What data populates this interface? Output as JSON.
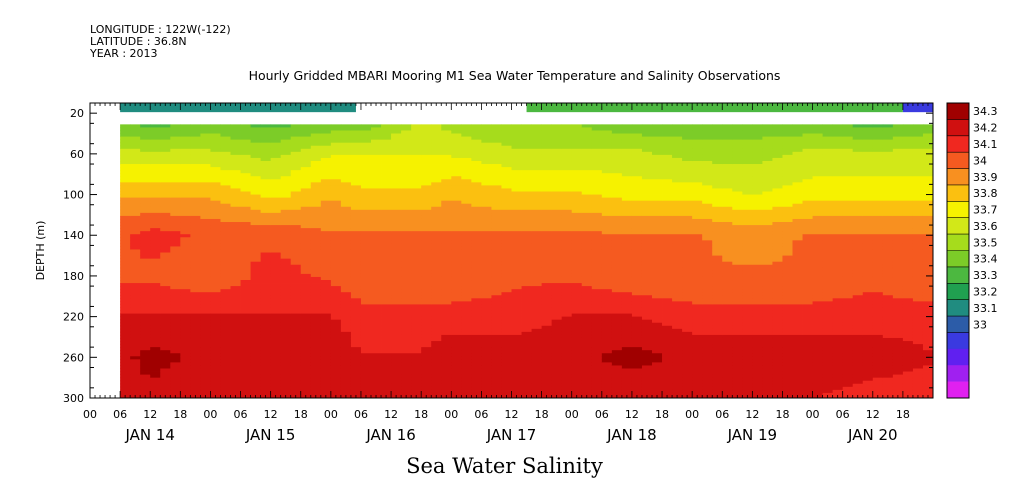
{
  "meta": {
    "longitude": "LONGITUDE : 122W(-122)",
    "latitude": "LATITUDE : 36.8N",
    "year": "YEAR : 2013"
  },
  "chart_data": {
    "type": "heatmap",
    "title": "Hourly Gridded MBARI Mooring M1 Sea Water Temperature and Salinity Observations",
    "footer": "Sea Water Salinity",
    "ylabel": "DEPTH (m)",
    "ylim": [
      300,
      10
    ],
    "y_ticks": [
      20,
      60,
      100,
      140,
      180,
      220,
      260,
      300
    ],
    "x_hour_ticks": [
      "00",
      "06",
      "12",
      "18",
      "00",
      "06",
      "12",
      "18",
      "00",
      "06",
      "12",
      "18",
      "00",
      "06",
      "12",
      "18",
      "00",
      "06",
      "12",
      "18",
      "00",
      "06",
      "12",
      "18",
      "00",
      "06",
      "12",
      "18"
    ],
    "x_day_labels": [
      "JAN 14",
      "JAN 15",
      "JAN 16",
      "JAN 17",
      "JAN 18",
      "JAN 19",
      "JAN 20"
    ],
    "x_range_hours": [
      0,
      168
    ],
    "colorbar": {
      "levels": [
        "34.3",
        "34.2",
        "34.1",
        "34",
        "33.9",
        "33.8",
        "33.7",
        "33.6",
        "33.5",
        "33.4",
        "33.3",
        "33.2",
        "33.1",
        "33"
      ],
      "colors": [
        "#a00000",
        "#d01010",
        "#f02820",
        "#f55a20",
        "#f89020",
        "#fbc010",
        "#f6f200",
        "#d2e818",
        "#a6dc1c",
        "#7ccc28",
        "#4cb840",
        "#20a050",
        "#208c80",
        "#2c5ca8",
        "#3a3ae0",
        "#6020f0",
        "#a020f0",
        "#e020f0"
      ]
    },
    "surface_band": [
      {
        "start_hour": 6,
        "end_hour": 53,
        "depth_top": 10,
        "depth_bottom": 19,
        "value": 33.35
      },
      {
        "start_hour": 87,
        "end_hour": 162,
        "depth_top": 10,
        "depth_bottom": 19,
        "value": 33.5
      },
      {
        "start_hour": 162,
        "end_hour": 168,
        "depth_top": 10,
        "depth_bottom": 19,
        "value": 33.2
      }
    ],
    "data_start_hour": 6,
    "data_top_depth": 31,
    "depth_profiles": [
      {
        "hour": 6,
        "depths": [
          31,
          60,
          100,
          140,
          180,
          220,
          260,
          300
        ],
        "values": [
          33.6,
          33.75,
          33.95,
          34.1,
          34.1,
          34.2,
          34.25,
          34.2
        ]
      },
      {
        "hour": 12,
        "depths": [
          31,
          60,
          100,
          140,
          180,
          220,
          260,
          300
        ],
        "values": [
          33.55,
          33.75,
          33.95,
          34.15,
          34.1,
          34.2,
          34.3,
          34.25
        ]
      },
      {
        "hour": 24,
        "depths": [
          31,
          60,
          100,
          140,
          180,
          220,
          260,
          300
        ],
        "values": [
          33.6,
          33.75,
          33.95,
          34.1,
          34.05,
          34.2,
          34.25,
          34.2
        ]
      },
      {
        "hour": 36,
        "depths": [
          31,
          60,
          100,
          140,
          180,
          220,
          260,
          300
        ],
        "values": [
          33.55,
          33.7,
          33.85,
          34.1,
          34.15,
          34.2,
          34.25,
          34.2
        ]
      },
      {
        "hour": 48,
        "depths": [
          31,
          60,
          100,
          140,
          180,
          220,
          260,
          300
        ],
        "values": [
          33.6,
          33.8,
          33.95,
          34.05,
          34.1,
          34.2,
          34.25,
          34.2
        ]
      },
      {
        "hour": 54,
        "depths": [
          31,
          60,
          100,
          140,
          180,
          220,
          260,
          300
        ],
        "values": [
          33.6,
          33.8,
          33.9,
          34.05,
          34.05,
          34.15,
          34.2,
          34.2
        ]
      },
      {
        "hour": 66,
        "depths": [
          31,
          60,
          100,
          140,
          180,
          220,
          260,
          300
        ],
        "values": [
          33.75,
          33.8,
          33.9,
          34.05,
          34.05,
          34.15,
          34.2,
          34.2
        ]
      },
      {
        "hour": 72,
        "depths": [
          31,
          60,
          100,
          140,
          180,
          220,
          260,
          300
        ],
        "values": [
          33.7,
          33.8,
          33.95,
          34.05,
          34.05,
          34.15,
          34.25,
          34.2
        ]
      },
      {
        "hour": 84,
        "depths": [
          31,
          60,
          100,
          140,
          180,
          220,
          260,
          300
        ],
        "values": [
          33.65,
          33.75,
          33.9,
          34.05,
          34.1,
          34.15,
          34.25,
          34.2
        ]
      },
      {
        "hour": 96,
        "depths": [
          31,
          60,
          100,
          140,
          180,
          220,
          260,
          300
        ],
        "values": [
          33.65,
          33.75,
          33.9,
          34.05,
          34.1,
          34.2,
          34.25,
          34.2
        ]
      },
      {
        "hour": 108,
        "depths": [
          31,
          60,
          100,
          140,
          180,
          220,
          260,
          300
        ],
        "values": [
          33.6,
          33.75,
          33.85,
          34.05,
          34.05,
          34.2,
          34.3,
          34.2
        ]
      },
      {
        "hour": 120,
        "depths": [
          31,
          60,
          100,
          140,
          180,
          220,
          260,
          300
        ],
        "values": [
          33.6,
          33.7,
          33.85,
          34.05,
          34.05,
          34.15,
          34.25,
          34.2
        ]
      },
      {
        "hour": 132,
        "depths": [
          31,
          60,
          100,
          140,
          180,
          220,
          260,
          300
        ],
        "values": [
          33.6,
          33.7,
          33.8,
          34.0,
          34.05,
          34.15,
          34.25,
          34.2
        ]
      },
      {
        "hour": 144,
        "depths": [
          31,
          60,
          100,
          140,
          180,
          220,
          260,
          300
        ],
        "values": [
          33.6,
          33.75,
          33.85,
          34.05,
          34.05,
          34.15,
          34.25,
          34.2
        ]
      },
      {
        "hour": 156,
        "depths": [
          31,
          60,
          100,
          140,
          180,
          220,
          260,
          300
        ],
        "values": [
          33.55,
          33.75,
          33.85,
          34.05,
          34.1,
          34.15,
          34.25,
          34.15
        ]
      },
      {
        "hour": 168,
        "depths": [
          31,
          60,
          100,
          140,
          180,
          220,
          260,
          300
        ],
        "values": [
          33.6,
          33.75,
          33.85,
          34.05,
          34.05,
          34.15,
          34.2,
          34.15
        ]
      }
    ]
  }
}
